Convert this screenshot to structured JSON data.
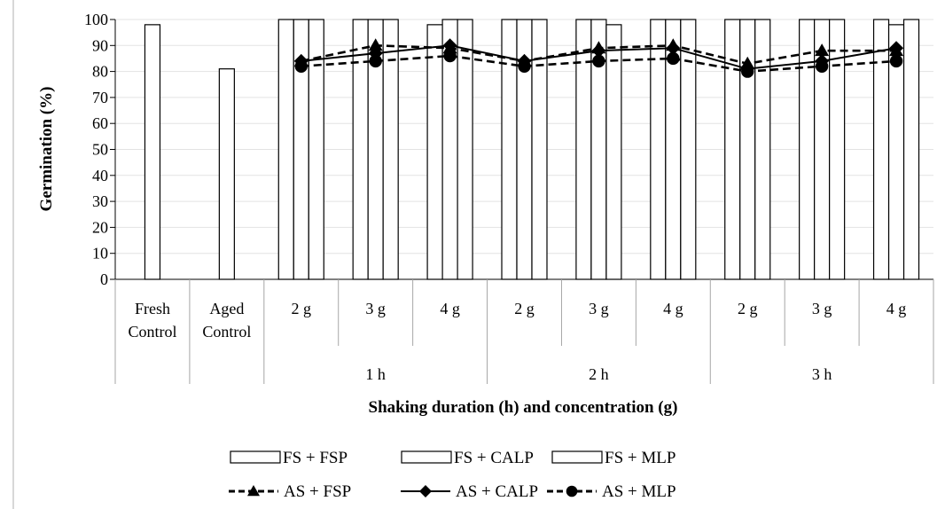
{
  "chart_data": {
    "type": "bar",
    "ylabel": "Germination (%)",
    "xlabel": "Shaking duration (h) and concentration (g)",
    "ylim": [
      0,
      100
    ],
    "yticks": [
      0,
      10,
      20,
      30,
      40,
      50,
      60,
      70,
      80,
      90,
      100
    ],
    "groups": [
      {
        "label": "",
        "categories": [
          {
            "label": [
              "Fresh",
              "Control"
            ],
            "bars": [
              98
            ],
            "lines": [
              null,
              null,
              null
            ]
          },
          {
            "label": [
              "Aged",
              "Control"
            ],
            "bars": [
              81
            ],
            "lines": [
              null,
              null,
              null
            ]
          }
        ]
      },
      {
        "label": "1 h",
        "categories": [
          {
            "label": [
              "2 g"
            ],
            "bars": [
              100,
              100,
              100
            ],
            "lines": [
              84,
              84,
              82
            ]
          },
          {
            "label": [
              "3 g"
            ],
            "bars": [
              100,
              100,
              100
            ],
            "lines": [
              90,
              87,
              84
            ]
          },
          {
            "label": [
              "4 g"
            ],
            "bars": [
              98,
              100,
              100
            ],
            "lines": [
              89,
              90,
              86
            ]
          }
        ]
      },
      {
        "label": "2 h",
        "categories": [
          {
            "label": [
              "2 g"
            ],
            "bars": [
              100,
              100,
              100
            ],
            "lines": [
              84,
              84,
              82
            ]
          },
          {
            "label": [
              "3 g"
            ],
            "bars": [
              100,
              100,
              98
            ],
            "lines": [
              89,
              88,
              84
            ]
          },
          {
            "label": [
              "4 g"
            ],
            "bars": [
              100,
              100,
              100
            ],
            "lines": [
              90,
              89,
              85
            ]
          }
        ]
      },
      {
        "label": "3 h",
        "categories": [
          {
            "label": [
              "2 g"
            ],
            "bars": [
              100,
              100,
              100
            ],
            "lines": [
              83,
              81,
              80
            ]
          },
          {
            "label": [
              "3 g"
            ],
            "bars": [
              100,
              100,
              100
            ],
            "lines": [
              88,
              84,
              82
            ]
          },
          {
            "label": [
              "4 g"
            ],
            "bars": [
              100,
              98,
              100
            ],
            "lines": [
              88,
              89,
              84
            ]
          }
        ]
      }
    ],
    "bar_series": [
      "FS + FSP",
      "FS + CALP",
      "FS + MLP"
    ],
    "line_series": [
      {
        "name": "AS + FSP",
        "marker": "triangle",
        "dash": "dashed"
      },
      {
        "name": "AS + CALP",
        "marker": "diamond",
        "dash": "solid"
      },
      {
        "name": "AS + MLP",
        "marker": "circle",
        "dash": "dashed"
      }
    ],
    "legend_position": "bottom"
  }
}
